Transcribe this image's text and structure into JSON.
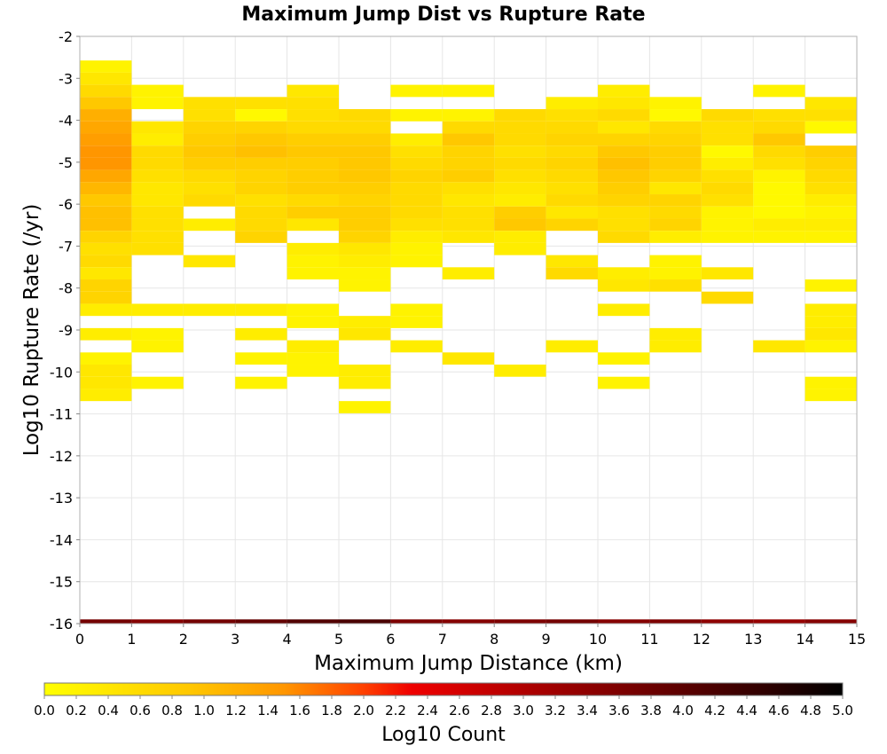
{
  "chart_data": {
    "type": "heatmap",
    "title": "Maximum Jump Dist vs Rupture Rate",
    "xlabel": "Maximum Jump Distance (km)",
    "ylabel": "Log10 Rupture Rate (/yr)",
    "xlim": [
      0,
      15
    ],
    "ylim": [
      -16,
      -2
    ],
    "x_ticks": [
      "0",
      "1",
      "2",
      "3",
      "4",
      "5",
      "6",
      "7",
      "8",
      "9",
      "10",
      "11",
      "12",
      "13",
      "14",
      "15"
    ],
    "y_ticks": [
      "-2",
      "-3",
      "-4",
      "-5",
      "-6",
      "-7",
      "-8",
      "-9",
      "-10",
      "-11",
      "-12",
      "-13",
      "-14",
      "-15",
      "-16"
    ],
    "colorbar": {
      "label": "Log10 Count",
      "min": 0.0,
      "max": 5.0,
      "ticks": [
        "0.0",
        "0.2",
        "0.4",
        "0.6",
        "0.8",
        "1.0",
        "1.2",
        "1.4",
        "1.6",
        "1.8",
        "2.0",
        "2.2",
        "2.4",
        "2.6",
        "2.8",
        "3.0",
        "3.2",
        "3.4",
        "3.6",
        "3.8",
        "4.0",
        "4.2",
        "4.4",
        "4.6",
        "4.8",
        "5.0"
      ]
    },
    "bin_width_x": 1,
    "bin_height_y": 0.29,
    "columns": [
      {
        "x": [
          0,
          1
        ],
        "cells": [
          [
            -2.72,
            0.2
          ],
          [
            -3.01,
            0.4
          ],
          [
            -3.3,
            0.6
          ],
          [
            -3.59,
            0.9
          ],
          [
            -3.88,
            1.2
          ],
          [
            -4.17,
            1.3
          ],
          [
            -4.46,
            1.4
          ],
          [
            -4.75,
            1.5
          ],
          [
            -5.04,
            1.5
          ],
          [
            -5.33,
            1.3
          ],
          [
            -5.62,
            1.1
          ],
          [
            -5.91,
            0.9
          ],
          [
            -6.2,
            1.0
          ],
          [
            -6.49,
            1.0
          ],
          [
            -6.78,
            0.7
          ],
          [
            -7.07,
            0.5
          ],
          [
            -7.36,
            0.6
          ],
          [
            -7.65,
            0.4
          ],
          [
            -7.94,
            0.7
          ],
          [
            -8.23,
            0.7
          ],
          [
            -8.52,
            0.3
          ],
          [
            -9.1,
            0.3
          ],
          [
            -9.68,
            0.2
          ],
          [
            -9.97,
            0.4
          ],
          [
            -10.26,
            0.4
          ],
          [
            -10.55,
            0.3
          ]
        ]
      },
      {
        "x": [
          1,
          2
        ],
        "cells": [
          [
            -3.3,
            0.2
          ],
          [
            -3.59,
            0.2
          ],
          [
            -4.17,
            0.4
          ],
          [
            -4.46,
            0.3
          ],
          [
            -4.75,
            0.6
          ],
          [
            -5.04,
            0.6
          ],
          [
            -5.33,
            0.5
          ],
          [
            -5.62,
            0.4
          ],
          [
            -5.91,
            0.4
          ],
          [
            -6.2,
            0.5
          ],
          [
            -6.49,
            0.5
          ],
          [
            -6.78,
            0.5
          ],
          [
            -7.07,
            0.5
          ],
          [
            -8.52,
            0.3
          ],
          [
            -9.1,
            0.2
          ],
          [
            -9.39,
            0.2
          ],
          [
            -10.26,
            0.2
          ]
        ]
      },
      {
        "x": [
          2,
          3
        ],
        "cells": [
          [
            -3.59,
            0.5
          ],
          [
            -3.88,
            0.5
          ],
          [
            -4.17,
            0.7
          ],
          [
            -4.46,
            0.8
          ],
          [
            -4.75,
            0.9
          ],
          [
            -5.04,
            0.8
          ],
          [
            -5.33,
            0.6
          ],
          [
            -5.62,
            0.5
          ],
          [
            -5.91,
            0.6
          ],
          [
            -6.49,
            0.3
          ],
          [
            -7.36,
            0.4
          ],
          [
            -8.52,
            0.3
          ]
        ]
      },
      {
        "x": [
          3,
          4
        ],
        "cells": [
          [
            -3.59,
            0.5
          ],
          [
            -3.88,
            0.1
          ],
          [
            -4.17,
            0.7
          ],
          [
            -4.46,
            0.9
          ],
          [
            -4.75,
            1.0
          ],
          [
            -5.04,
            0.8
          ],
          [
            -5.33,
            0.7
          ],
          [
            -5.62,
            0.7
          ],
          [
            -5.91,
            0.5
          ],
          [
            -6.2,
            0.6
          ],
          [
            -6.49,
            0.6
          ],
          [
            -6.78,
            0.7
          ],
          [
            -8.52,
            0.3
          ],
          [
            -9.1,
            0.3
          ],
          [
            -9.68,
            0.2
          ],
          [
            -10.26,
            0.2
          ]
        ]
      },
      {
        "x": [
          4,
          5
        ],
        "cells": [
          [
            -3.3,
            0.4
          ],
          [
            -3.59,
            0.5
          ],
          [
            -3.88,
            0.5
          ],
          [
            -4.17,
            0.6
          ],
          [
            -4.46,
            0.8
          ],
          [
            -4.75,
            0.9
          ],
          [
            -5.04,
            0.8
          ],
          [
            -5.33,
            0.8
          ],
          [
            -5.62,
            0.8
          ],
          [
            -5.91,
            0.6
          ],
          [
            -6.2,
            0.8
          ],
          [
            -6.49,
            0.4
          ],
          [
            -7.07,
            0.3
          ],
          [
            -7.36,
            0.2
          ],
          [
            -7.65,
            0.2
          ],
          [
            -8.52,
            0.2
          ],
          [
            -8.81,
            0.2
          ],
          [
            -9.39,
            0.3
          ],
          [
            -9.68,
            0.2
          ],
          [
            -9.97,
            0.2
          ]
        ]
      },
      {
        "x": [
          5,
          6
        ],
        "cells": [
          [
            -3.88,
            0.6
          ],
          [
            -4.17,
            0.6
          ],
          [
            -4.46,
            0.8
          ],
          [
            -4.75,
            0.9
          ],
          [
            -5.04,
            0.9
          ],
          [
            -5.33,
            0.9
          ],
          [
            -5.62,
            0.8
          ],
          [
            -5.91,
            0.7
          ],
          [
            -6.2,
            0.8
          ],
          [
            -6.49,
            0.8
          ],
          [
            -6.78,
            0.7
          ],
          [
            -7.07,
            0.4
          ],
          [
            -7.36,
            0.3
          ],
          [
            -7.65,
            0.2
          ],
          [
            -7.94,
            0.2
          ],
          [
            -8.81,
            0.3
          ],
          [
            -9.1,
            0.4
          ],
          [
            -9.97,
            0.3
          ],
          [
            -10.26,
            0.3
          ],
          [
            -10.84,
            0.2
          ]
        ]
      },
      {
        "x": [
          6,
          7
        ],
        "cells": [
          [
            -3.3,
            0.2
          ],
          [
            -3.88,
            0.2
          ],
          [
            -4.46,
            0.3
          ],
          [
            -4.75,
            0.5
          ],
          [
            -5.04,
            0.6
          ],
          [
            -5.33,
            0.7
          ],
          [
            -5.62,
            0.6
          ],
          [
            -5.91,
            0.6
          ],
          [
            -6.2,
            0.6
          ],
          [
            -6.49,
            0.5
          ],
          [
            -6.78,
            0.3
          ],
          [
            -7.07,
            0.2
          ],
          [
            -7.36,
            0.2
          ],
          [
            -8.52,
            0.2
          ],
          [
            -8.81,
            0.2
          ],
          [
            -9.39,
            0.3
          ]
        ]
      },
      {
        "x": [
          7,
          8
        ],
        "cells": [
          [
            -3.3,
            0.2
          ],
          [
            -3.88,
            0.2
          ],
          [
            -4.17,
            0.6
          ],
          [
            -4.46,
            0.9
          ],
          [
            -4.75,
            0.7
          ],
          [
            -5.04,
            0.7
          ],
          [
            -5.33,
            0.8
          ],
          [
            -5.62,
            0.5
          ],
          [
            -5.91,
            0.4
          ],
          [
            -6.2,
            0.5
          ],
          [
            -6.49,
            0.5
          ],
          [
            -6.78,
            0.4
          ],
          [
            -7.65,
            0.3
          ],
          [
            -9.68,
            0.4
          ]
        ]
      },
      {
        "x": [
          8,
          9
        ],
        "cells": [
          [
            -3.88,
            0.6
          ],
          [
            -4.17,
            0.6
          ],
          [
            -4.46,
            0.6
          ],
          [
            -4.75,
            0.5
          ],
          [
            -5.04,
            0.6
          ],
          [
            -5.33,
            0.5
          ],
          [
            -5.62,
            0.4
          ],
          [
            -5.91,
            0.3
          ],
          [
            -6.2,
            0.8
          ],
          [
            -6.49,
            0.9
          ],
          [
            -6.78,
            0.3
          ],
          [
            -7.07,
            0.3
          ],
          [
            -9.97,
            0.3
          ]
        ]
      },
      {
        "x": [
          9,
          10
        ],
        "cells": [
          [
            -3.59,
            0.3
          ],
          [
            -3.88,
            0.5
          ],
          [
            -4.17,
            0.6
          ],
          [
            -4.46,
            0.7
          ],
          [
            -4.75,
            0.6
          ],
          [
            -5.04,
            0.7
          ],
          [
            -5.33,
            0.6
          ],
          [
            -5.62,
            0.5
          ],
          [
            -5.91,
            0.6
          ],
          [
            -6.2,
            0.4
          ],
          [
            -6.49,
            0.7
          ],
          [
            -7.36,
            0.4
          ],
          [
            -7.65,
            0.6
          ],
          [
            -9.39,
            0.3
          ]
        ]
      },
      {
        "x": [
          10,
          11
        ],
        "cells": [
          [
            -3.3,
            0.3
          ],
          [
            -3.59,
            0.4
          ],
          [
            -3.88,
            0.6
          ],
          [
            -4.17,
            0.4
          ],
          [
            -4.46,
            0.7
          ],
          [
            -4.75,
            0.9
          ],
          [
            -5.04,
            1.0
          ],
          [
            -5.33,
            0.9
          ],
          [
            -5.62,
            0.8
          ],
          [
            -5.91,
            0.7
          ],
          [
            -6.2,
            0.5
          ],
          [
            -6.49,
            0.5
          ],
          [
            -6.78,
            0.6
          ],
          [
            -7.65,
            0.3
          ],
          [
            -7.94,
            0.4
          ],
          [
            -8.52,
            0.3
          ],
          [
            -9.68,
            0.2
          ],
          [
            -10.26,
            0.2
          ]
        ]
      },
      {
        "x": [
          11,
          12
        ],
        "cells": [
          [
            -3.59,
            0.2
          ],
          [
            -3.88,
            0.1
          ],
          [
            -4.17,
            0.6
          ],
          [
            -4.46,
            0.7
          ],
          [
            -4.75,
            0.8
          ],
          [
            -5.04,
            0.8
          ],
          [
            -5.33,
            0.7
          ],
          [
            -5.62,
            0.4
          ],
          [
            -5.91,
            0.7
          ],
          [
            -6.2,
            0.6
          ],
          [
            -6.49,
            0.7
          ],
          [
            -6.78,
            0.3
          ],
          [
            -7.36,
            0.2
          ],
          [
            -7.65,
            0.2
          ],
          [
            -7.94,
            0.5
          ],
          [
            -9.1,
            0.3
          ],
          [
            -9.39,
            0.3
          ]
        ]
      },
      {
        "x": [
          12,
          13
        ],
        "cells": [
          [
            -3.88,
            0.6
          ],
          [
            -4.17,
            0.5
          ],
          [
            -4.46,
            0.5
          ],
          [
            -4.75,
            0.1
          ],
          [
            -5.04,
            0.3
          ],
          [
            -5.33,
            0.5
          ],
          [
            -5.62,
            0.6
          ],
          [
            -5.91,
            0.5
          ],
          [
            -6.2,
            0.2
          ],
          [
            -6.49,
            0.2
          ],
          [
            -6.78,
            0.2
          ],
          [
            -7.65,
            0.4
          ],
          [
            -8.23,
            0.6
          ]
        ]
      },
      {
        "x": [
          13,
          14
        ],
        "cells": [
          [
            -3.3,
            0.2
          ],
          [
            -3.88,
            0.5
          ],
          [
            -4.17,
            0.6
          ],
          [
            -4.46,
            0.9
          ],
          [
            -4.75,
            0.6
          ],
          [
            -5.04,
            0.5
          ],
          [
            -5.33,
            0.2
          ],
          [
            -5.62,
            0.1
          ],
          [
            -5.91,
            0.1
          ],
          [
            -6.2,
            0.1
          ],
          [
            -6.49,
            0.3
          ],
          [
            -6.78,
            0.2
          ],
          [
            -9.39,
            0.4
          ]
        ]
      },
      {
        "x": [
          14,
          15
        ],
        "cells": [
          [
            -3.59,
            0.4
          ],
          [
            -3.88,
            0.5
          ],
          [
            -4.17,
            0.1
          ],
          [
            -4.75,
            0.8
          ],
          [
            -5.04,
            0.7
          ],
          [
            -5.33,
            0.6
          ],
          [
            -5.62,
            0.5
          ],
          [
            -5.91,
            0.3
          ],
          [
            -6.2,
            0.2
          ],
          [
            -6.49,
            0.3
          ],
          [
            -6.78,
            0.2
          ],
          [
            -7.94,
            0.2
          ],
          [
            -8.52,
            0.3
          ],
          [
            -8.81,
            0.3
          ],
          [
            -9.1,
            0.4
          ],
          [
            -9.39,
            0.2
          ],
          [
            -10.26,
            0.2
          ],
          [
            -10.55,
            0.2
          ]
        ]
      }
    ],
    "bottom_band": {
      "y": -16,
      "values": [
        3.7,
        3.5,
        3.7,
        3.9,
        4.1,
        4.2,
        3.6,
        3.5,
        3.6,
        3.7,
        3.5,
        3.6,
        3.4,
        3.3,
        3.5
      ]
    }
  }
}
